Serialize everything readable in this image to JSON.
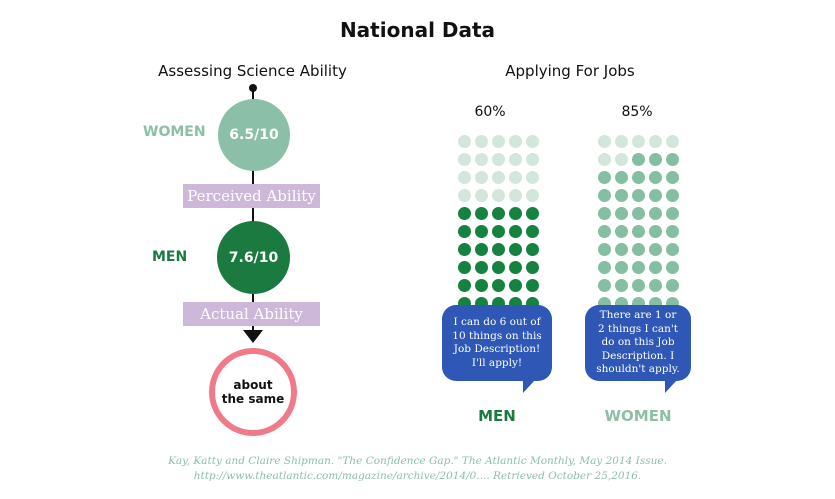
{
  "title": "National Data",
  "science": {
    "heading": "Assessing Science Ability",
    "women_label": "WOMEN",
    "women_score": "6.5/10",
    "perceived_label": "Perceived Ability",
    "men_label": "MEN",
    "men_score": "7.6/10",
    "actual_label": "Actual Ability",
    "result_line1": "about",
    "result_line2": "the same"
  },
  "jobs": {
    "heading": "Applying For Jobs",
    "men": {
      "percent": "60%",
      "filled_fraction": 0.6,
      "bubble": "I can do 6 out of 10 things on this Job Description! I'll apply!",
      "label": "MEN"
    },
    "women": {
      "percent": "85%",
      "filled_fraction": 0.85,
      "bubble": "There are 1 or 2 things I can't do on this Job Description. I shouldn't apply.",
      "label": "WOMEN"
    }
  },
  "citation": {
    "line1": "Kay, Katty and Claire Shipman. \"The Confidence Gap.\" The Atlantic Monthly, May 2014 Issue.",
    "line2": "http://www.theatlantic.com/magazine/archive/2014/0.... Retrieved October 25,2016."
  },
  "colors": {
    "women": "#8bbfa8",
    "men": "#1a7a40",
    "men_dot": "#15823f",
    "faded_dot": "#d3e6dc",
    "women_dot": "#86bea4",
    "bar": "#cdb8da",
    "ring": "#f07a8a",
    "bubble": "#2e57b6"
  }
}
